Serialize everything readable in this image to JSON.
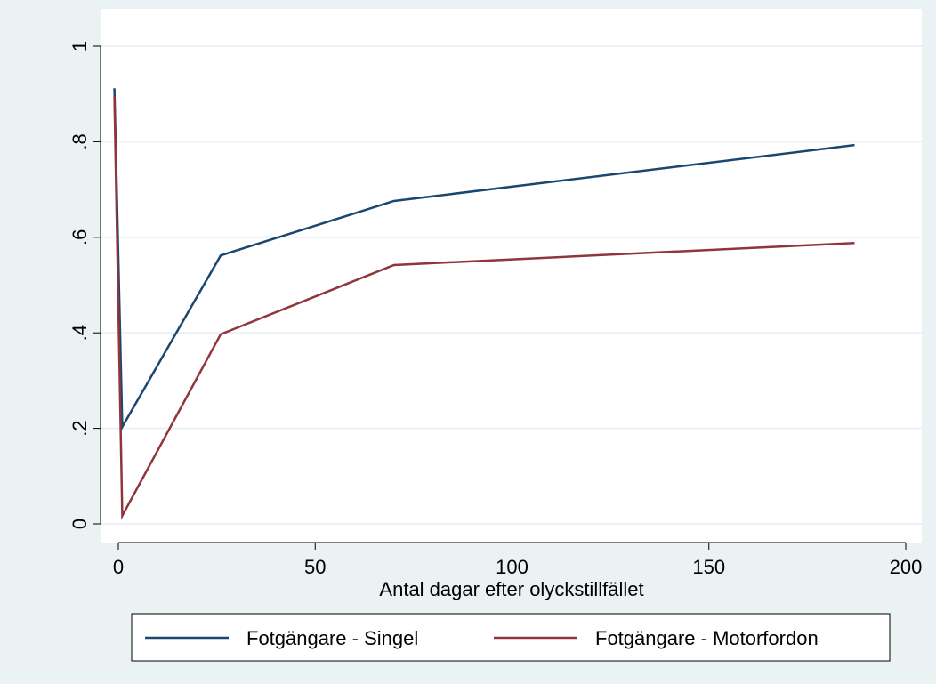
{
  "chart_data": {
    "type": "line",
    "x_label": "Antal dagar efter olyckstillfället",
    "x": [
      -1,
      1,
      26,
      70,
      187
    ],
    "series": [
      {
        "name": "Fotgängare - Singel",
        "color": "#1a476f",
        "values": [
          0.912,
          0.203,
          0.562,
          0.676,
          0.793
        ]
      },
      {
        "name": "Fotgängare - Motorfordon",
        "color": "#90353b",
        "values": [
          0.896,
          0.017,
          0.397,
          0.542,
          0.588
        ]
      }
    ],
    "xlim": [
      0,
      200
    ],
    "xticks": [
      0,
      50,
      100,
      150,
      200
    ],
    "ylim": [
      0,
      1
    ],
    "yticks": [
      0,
      {
        "value": 0.2,
        "label": ".2"
      },
      {
        "value": 0.4,
        "label": ".4"
      },
      {
        "value": 0.6,
        "label": ".6"
      },
      {
        "value": 0.8,
        "label": ".8"
      },
      1
    ],
    "grid": true,
    "legend": "bottom"
  }
}
